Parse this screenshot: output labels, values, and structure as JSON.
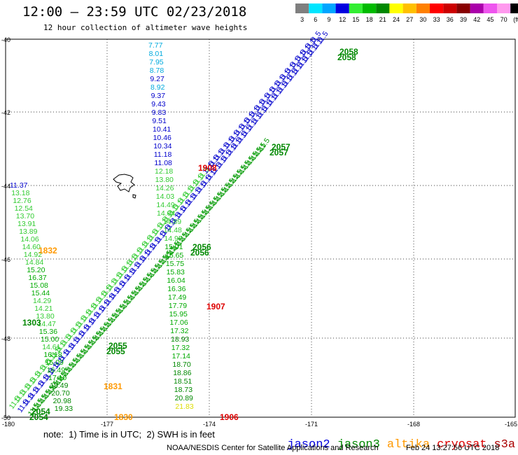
{
  "header": {
    "title": "12:00 – 23:59 UTC 02/23/2018",
    "subtitle": "12 hour collection of altimeter wave heights"
  },
  "color_scale": {
    "ticks": [
      "3",
      "6",
      "9",
      "12",
      "15",
      "18",
      "21",
      "24",
      "27",
      "30",
      "33",
      "36",
      "39",
      "42",
      "45",
      "70",
      "(ft)"
    ],
    "colors": [
      "#7f7f7f",
      "#00e5ff",
      "#00a5ff",
      "#0000e0",
      "#33ee33",
      "#00bb00",
      "#008800",
      "#ffff00",
      "#ffc000",
      "#ff8000",
      "#ff0000",
      "#cc0000",
      "#880000",
      "#aa00aa",
      "#ee55ee",
      "#ff99ee",
      "#000000"
    ]
  },
  "axes": {
    "x_ticks": [
      "-180",
      "-177",
      "-174",
      "-171",
      "-168",
      "-165"
    ],
    "y_ticks": [
      "-40",
      "-42",
      "-44",
      "-46",
      "-48",
      "-50"
    ]
  },
  "satellites": [
    {
      "name": "jason2",
      "color": "#0000dd"
    },
    {
      "name": "jason3",
      "color": "#008800"
    },
    {
      "name": "altika",
      "color": "#ff9900"
    },
    {
      "name": "cryosat",
      "color": "#dd0000"
    },
    {
      "name": "s3a",
      "color": "#aa0000"
    }
  ],
  "footer": {
    "note": "note:  1) Time is in UTC;  2) SWH is in feet",
    "credit": "NOAA/NESDIS Center for Satellite Applications and Research",
    "timestamp": "Feb 24 13:27:56 UTC 2018"
  },
  "tracks": {
    "vertical_1": {
      "values": [
        "7.77",
        "8.01",
        "7.95",
        "8.78",
        "9.27",
        "8.92",
        "9.37",
        "9.43",
        "9.83",
        "9.51",
        "10.41",
        "10.46",
        "10.34",
        "11.18",
        "11.08",
        "12.18",
        "13.80",
        "14.26",
        "14.03",
        "14.49",
        "14.04",
        "14.89",
        "14.48",
        "14.97",
        "15.01",
        "15.65",
        "15.75",
        "15.83",
        "16.04",
        "16.36",
        "17.49",
        "17.79",
        "15.95",
        "17.06",
        "17.32",
        "18.93",
        "17.32",
        "17.14",
        "18.70",
        "18.86",
        "18.51",
        "18.73",
        "20.89",
        "21.83"
      ],
      "times": [
        "1908",
        "1907",
        "1906"
      ]
    },
    "vertical_2": {
      "values": [
        "11.37",
        "13.18",
        "12.76",
        "12.54",
        "13.70",
        "13.91",
        "13.89",
        "14.06",
        "14.60",
        "14.92",
        "14.84",
        "15.20",
        "16.37",
        "15.08",
        "15.44",
        "14.29",
        "14.21",
        "13.80",
        "14.47",
        "15.36",
        "15.00",
        "14.61",
        "16.18",
        "15.09",
        "16.49",
        "17.10",
        "18.49",
        "20.70",
        "20.98",
        "19.33"
      ],
      "times": [
        "1832",
        "1303",
        "1831",
        "1830"
      ]
    },
    "diagonal_passes": {
      "times": [
        "2058",
        "2057",
        "2056",
        "2055",
        "2054"
      ]
    }
  }
}
